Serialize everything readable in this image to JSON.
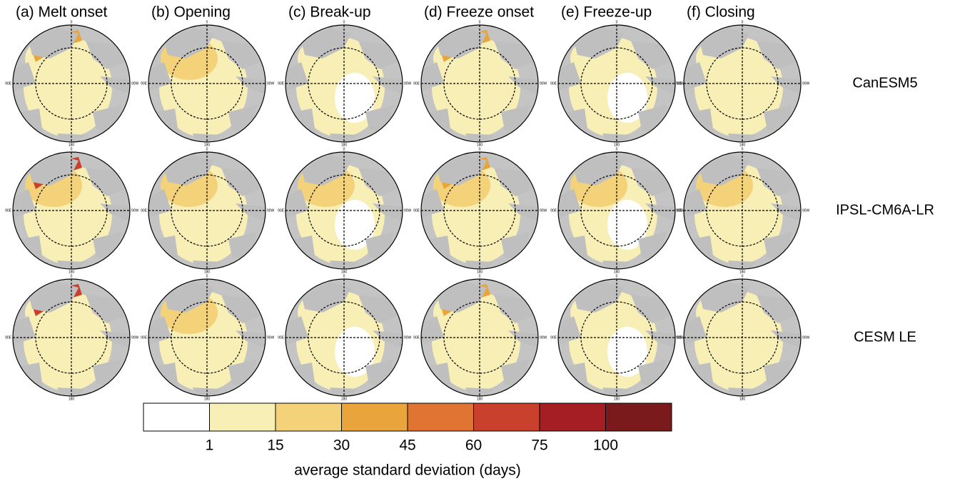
{
  "columns": [
    "(a) Melt onset",
    "(b) Opening",
    "(c) Break-up",
    "(d) Freeze onset",
    "(e) Freeze-up",
    "(f) Closing"
  ],
  "rows": [
    "CanESM5",
    "IPSL-CM6A-LR",
    "CESM LE"
  ],
  "map_labels": {
    "top": "0",
    "bottom": "180",
    "left": "90E",
    "right": "90W"
  },
  "colorbar": {
    "colors": [
      "#ffffff",
      "#f8efb6",
      "#f3d27a",
      "#e9a53c",
      "#df7433",
      "#c9402c",
      "#a41e24",
      "#7a1a1c"
    ],
    "ticks": [
      "1",
      "15",
      "30",
      "45",
      "60",
      "75",
      "100"
    ],
    "label": "average standard deviation (days)"
  }
}
